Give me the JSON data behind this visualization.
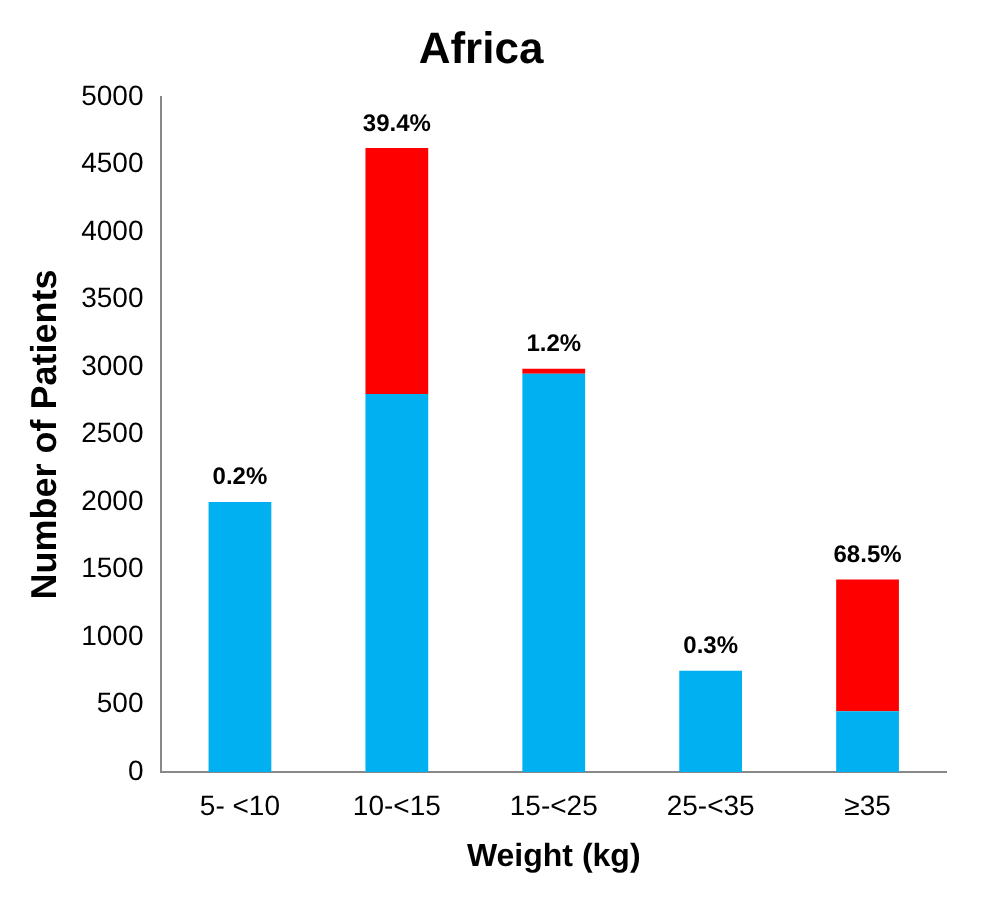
{
  "chart_data": {
    "type": "bar",
    "title": "Africa",
    "xlabel": "Weight (kg)",
    "ylabel": "Number of Patients",
    "categories": [
      "5- <10",
      "10-<15",
      "15-<25",
      "25-<35",
      "≥35"
    ],
    "stacked": true,
    "series": [
      {
        "color": "#00b0f0",
        "values": [
          2000,
          2800,
          2950,
          750,
          450
        ]
      },
      {
        "color": "#ff0000",
        "values": [
          null,
          1820,
          36,
          null,
          975
        ]
      }
    ],
    "ylim": [
      0,
      5000
    ],
    "yticks": [
      0,
      500,
      1000,
      1500,
      2000,
      2500,
      3000,
      3500,
      4000,
      4500,
      5000
    ],
    "annotations": [
      {
        "text": "0.2%",
        "x": "5- <10",
        "y": 2004
      },
      {
        "text": "39.4%",
        "x": "10-<15",
        "y": 4620
      },
      {
        "text": "1.2%",
        "x": "15-<25",
        "y": 2986
      },
      {
        "text": "0.3%",
        "x": "25-<35",
        "y": 752
      },
      {
        "text": "68.5%",
        "x": "≥35",
        "y": 1425
      }
    ]
  }
}
